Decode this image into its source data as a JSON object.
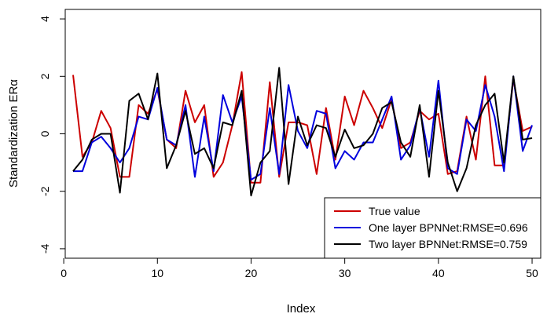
{
  "chart_data": {
    "type": "line",
    "x_label": "Index",
    "y_label": "Standardization ERα",
    "x": [
      1,
      2,
      3,
      4,
      5,
      6,
      7,
      8,
      9,
      10,
      11,
      12,
      13,
      14,
      15,
      16,
      17,
      18,
      19,
      20,
      21,
      22,
      23,
      24,
      25,
      26,
      27,
      28,
      29,
      30,
      31,
      32,
      33,
      34,
      35,
      36,
      37,
      38,
      39,
      40,
      41,
      42,
      43,
      44,
      45,
      46,
      47,
      48,
      49,
      50
    ],
    "series": [
      {
        "name": "True value",
        "color": "#cc0000",
        "values": [
          2.05,
          -0.8,
          -0.3,
          0.8,
          0.2,
          -1.5,
          -1.5,
          1.0,
          0.7,
          1.55,
          -0.2,
          -0.5,
          1.5,
          0.4,
          1.0,
          -1.5,
          -1.0,
          0.3,
          2.15,
          -1.7,
          -1.7,
          1.8,
          -1.5,
          0.4,
          0.4,
          0.3,
          -1.4,
          0.9,
          -0.9,
          1.3,
          0.3,
          1.5,
          0.9,
          0.2,
          1.2,
          -0.5,
          -0.3,
          0.8,
          0.5,
          0.7,
          -1.4,
          -1.3,
          0.6,
          -0.9,
          2.0,
          -1.1,
          -1.1,
          1.9,
          0.1,
          0.25
        ]
      },
      {
        "name": "One layer BPNNet:RMSE=0.696",
        "color": "#0000dd",
        "values": [
          -1.3,
          -1.3,
          -0.3,
          -0.1,
          -0.5,
          -1.0,
          -0.5,
          0.6,
          0.5,
          1.6,
          -0.2,
          -0.4,
          1.0,
          -1.5,
          0.6,
          -1.3,
          1.35,
          0.4,
          1.3,
          -1.6,
          -1.4,
          0.9,
          -1.4,
          1.7,
          0.1,
          -0.5,
          0.8,
          0.7,
          -1.2,
          -0.6,
          -0.9,
          -0.3,
          -0.3,
          0.5,
          1.3,
          -0.9,
          -0.4,
          0.9,
          -0.8,
          1.85,
          -1.2,
          -1.4,
          0.5,
          0.1,
          1.7,
          0.6,
          -1.3,
          2.0,
          -0.6,
          0.3
        ]
      },
      {
        "name": "Two layer BPNNet:RMSE=0.759",
        "color": "#000000",
        "values": [
          -1.3,
          -0.9,
          -0.2,
          0.0,
          0.0,
          -2.05,
          1.15,
          1.4,
          0.5,
          2.1,
          -1.2,
          -0.4,
          0.8,
          -0.7,
          -0.5,
          -1.2,
          0.4,
          0.3,
          1.5,
          -2.15,
          -1.0,
          -0.6,
          2.3,
          -1.75,
          0.6,
          -0.4,
          0.3,
          0.2,
          -0.8,
          0.15,
          -0.5,
          -0.4,
          0.0,
          0.9,
          1.1,
          -0.3,
          -0.8,
          1.0,
          -1.5,
          1.5,
          -1.0,
          -2.0,
          -1.2,
          0.3,
          1.0,
          1.4,
          -1.0,
          2.0,
          -0.2,
          -0.15
        ]
      }
    ],
    "xlim": [
      0.16,
      50.92
    ],
    "ylim": [
      -4.33,
      4.33
    ],
    "xticks": [
      0,
      10,
      20,
      30,
      40,
      50
    ],
    "yticks": [
      -4,
      -2,
      0,
      2,
      4
    ],
    "legend": "bottomright"
  }
}
